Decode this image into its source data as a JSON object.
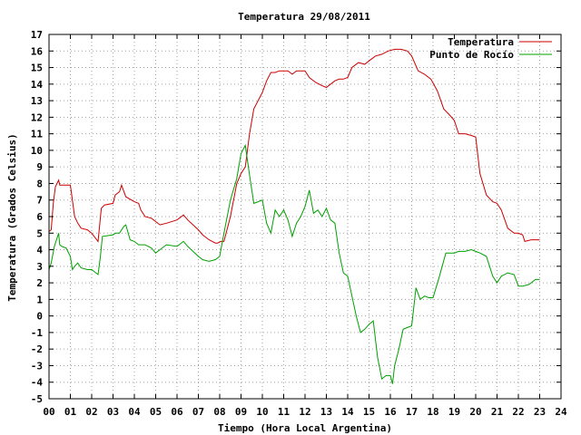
{
  "chart_data": {
    "type": "line",
    "title": "Temperatura 29/08/2011",
    "xlabel": "Tiempo (Hora Local Argentina)",
    "ylabel": "Temperatura (Grados Celsius)",
    "xlim": [
      0,
      24
    ],
    "ylim": [
      -5,
      17
    ],
    "x_tick_labels": [
      "00",
      "01",
      "02",
      "03",
      "04",
      "05",
      "06",
      "07",
      "08",
      "09",
      "10",
      "11",
      "12",
      "13",
      "14",
      "15",
      "16",
      "17",
      "18",
      "19",
      "20",
      "21",
      "22",
      "23",
      "24"
    ],
    "y_ticks": [
      -5,
      -4,
      -3,
      -2,
      -1,
      0,
      1,
      2,
      3,
      4,
      5,
      6,
      7,
      8,
      9,
      10,
      11,
      12,
      13,
      14,
      15,
      16,
      17
    ],
    "grid": true,
    "legend_position": "top-right",
    "series": [
      {
        "name": "Temperatura",
        "color": "#cc0000",
        "x": [
          0.0,
          0.1,
          0.2,
          0.3,
          0.45,
          0.5,
          0.6,
          1.0,
          1.2,
          1.35,
          1.5,
          1.8,
          2.0,
          2.3,
          2.45,
          2.6,
          3.0,
          3.1,
          3.3,
          3.4,
          3.6,
          4.0,
          4.2,
          4.3,
          4.5,
          4.8,
          5.0,
          5.2,
          5.5,
          6.0,
          6.3,
          6.5,
          7.0,
          7.2,
          7.5,
          7.8,
          7.9,
          8.05,
          8.2,
          8.5,
          8.8,
          9.0,
          9.2,
          9.4,
          9.6,
          9.8,
          10.0,
          10.2,
          10.4,
          10.6,
          10.8,
          11.0,
          11.2,
          11.4,
          11.6,
          11.8,
          12.0,
          12.2,
          12.5,
          12.8,
          13.0,
          13.2,
          13.4,
          13.6,
          13.8,
          14.0,
          14.2,
          14.5,
          14.8,
          15.0,
          15.3,
          15.6,
          15.9,
          16.2,
          16.5,
          16.8,
          17.0,
          17.3,
          17.6,
          17.9,
          18.2,
          18.5,
          18.8,
          19.0,
          19.2,
          19.5,
          19.8,
          20.0,
          20.2,
          20.5,
          20.8,
          21.0,
          21.2,
          21.5,
          21.8,
          22.0,
          22.2,
          22.3,
          22.6,
          23.0
        ],
        "values": [
          5.1,
          5.2,
          6.8,
          7.8,
          8.2,
          7.9,
          7.9,
          7.9,
          6.0,
          5.6,
          5.3,
          5.2,
          5.0,
          4.5,
          6.5,
          6.7,
          6.8,
          7.3,
          7.5,
          7.9,
          7.2,
          6.9,
          6.8,
          6.4,
          6.0,
          5.9,
          5.7,
          5.5,
          5.6,
          5.8,
          6.1,
          5.8,
          5.2,
          4.9,
          4.6,
          4.4,
          4.4,
          4.5,
          4.5,
          6.0,
          8.0,
          8.6,
          9.0,
          11.0,
          12.5,
          13.0,
          13.5,
          14.2,
          14.7,
          14.7,
          14.8,
          14.8,
          14.8,
          14.6,
          14.8,
          14.8,
          14.8,
          14.4,
          14.1,
          13.9,
          13.8,
          14.0,
          14.2,
          14.3,
          14.3,
          14.4,
          15.0,
          15.3,
          15.2,
          15.4,
          15.7,
          15.8,
          16.0,
          16.1,
          16.1,
          16.0,
          15.7,
          14.8,
          14.6,
          14.3,
          13.6,
          12.5,
          12.1,
          11.8,
          11.0,
          11.0,
          10.9,
          10.8,
          8.6,
          7.3,
          6.9,
          6.8,
          6.4,
          5.3,
          5.0,
          5.0,
          4.9,
          4.5,
          4.6,
          4.6
        ]
      },
      {
        "name": "Punto de Rocío",
        "color": "#00a000",
        "x": [
          0.0,
          0.1,
          0.25,
          0.45,
          0.5,
          0.6,
          0.8,
          1.0,
          1.1,
          1.2,
          1.35,
          1.5,
          1.8,
          2.0,
          2.3,
          2.4,
          2.5,
          3.0,
          3.1,
          3.3,
          3.5,
          3.6,
          3.8,
          4.0,
          4.2,
          4.5,
          4.8,
          5.0,
          5.2,
          5.5,
          6.0,
          6.3,
          6.5,
          7.0,
          7.2,
          7.5,
          7.8,
          8.0,
          8.2,
          8.5,
          8.8,
          9.0,
          9.2,
          9.4,
          9.6,
          9.8,
          10.0,
          10.2,
          10.4,
          10.6,
          10.8,
          11.0,
          11.2,
          11.4,
          11.6,
          11.8,
          12.0,
          12.2,
          12.4,
          12.6,
          12.8,
          13.0,
          13.2,
          13.4,
          13.6,
          13.8,
          14.0,
          14.2,
          14.4,
          14.6,
          14.8,
          15.0,
          15.2,
          15.4,
          15.6,
          15.8,
          16.0,
          16.1,
          16.2,
          16.4,
          16.6,
          16.8,
          17.0,
          17.2,
          17.4,
          17.6,
          17.8,
          18.0,
          18.3,
          18.6,
          19.0,
          19.2,
          19.5,
          19.8,
          20.0,
          20.2,
          20.5,
          20.8,
          21.0,
          21.2,
          21.5,
          21.8,
          22.0,
          22.2,
          22.5,
          22.8,
          23.0
        ],
        "values": [
          2.8,
          3.2,
          4.2,
          5.0,
          4.3,
          4.2,
          4.1,
          3.6,
          2.8,
          3.0,
          3.2,
          2.9,
          2.8,
          2.8,
          2.5,
          3.5,
          4.8,
          4.9,
          5.0,
          5.0,
          5.4,
          5.5,
          4.6,
          4.5,
          4.3,
          4.3,
          4.1,
          3.8,
          4.0,
          4.3,
          4.2,
          4.5,
          4.2,
          3.6,
          3.4,
          3.3,
          3.4,
          3.6,
          5.0,
          7.0,
          8.3,
          9.8,
          10.3,
          8.5,
          6.8,
          6.9,
          7.0,
          5.6,
          5.0,
          6.4,
          6.0,
          6.4,
          5.8,
          4.8,
          5.6,
          6.0,
          6.6,
          7.6,
          6.2,
          6.4,
          6.0,
          6.5,
          5.8,
          5.6,
          3.8,
          2.6,
          2.4,
          1.2,
          0.0,
          -1.0,
          -0.8,
          -0.5,
          -0.3,
          -2.5,
          -3.8,
          -3.6,
          -3.6,
          -4.1,
          -3.0,
          -2.0,
          -0.8,
          -0.7,
          -0.6,
          1.7,
          1.0,
          1.2,
          1.1,
          1.1,
          2.4,
          3.8,
          3.8,
          3.9,
          3.9,
          4.0,
          3.9,
          3.8,
          3.6,
          2.4,
          2.0,
          2.4,
          2.6,
          2.5,
          1.8,
          1.8,
          1.9,
          2.2,
          2.2
        ]
      }
    ]
  }
}
